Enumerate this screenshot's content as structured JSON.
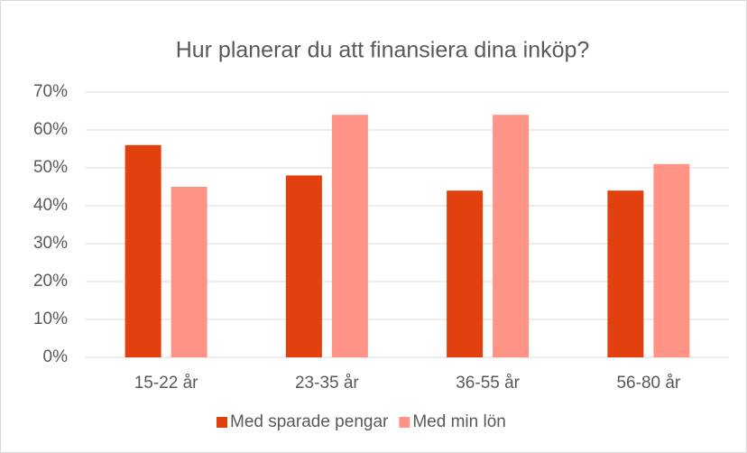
{
  "chart_data": {
    "type": "bar",
    "title": "Hur planerar du att finansiera dina inköp?",
    "categories": [
      "15-22 år",
      "23-35 år",
      "36-55 år",
      "56-80 år"
    ],
    "series": [
      {
        "name": "Med sparade pengar",
        "color": "#e2400e",
        "values": [
          56,
          48,
          44,
          44
        ]
      },
      {
        "name": "Med min lön",
        "color": "#ff9486",
        "values": [
          45,
          64,
          64,
          51
        ]
      }
    ],
    "ylim": [
      0,
      70
    ],
    "yticks": [
      {
        "value": 0,
        "label": "0%"
      },
      {
        "value": 10,
        "label": "10%"
      },
      {
        "value": 20,
        "label": "20%"
      },
      {
        "value": 30,
        "label": "30%"
      },
      {
        "value": 40,
        "label": "40%"
      },
      {
        "value": 50,
        "label": "50%"
      },
      {
        "value": 60,
        "label": "60%"
      },
      {
        "value": 70,
        "label": "70%"
      }
    ],
    "grid": true,
    "legend": "bottom"
  }
}
